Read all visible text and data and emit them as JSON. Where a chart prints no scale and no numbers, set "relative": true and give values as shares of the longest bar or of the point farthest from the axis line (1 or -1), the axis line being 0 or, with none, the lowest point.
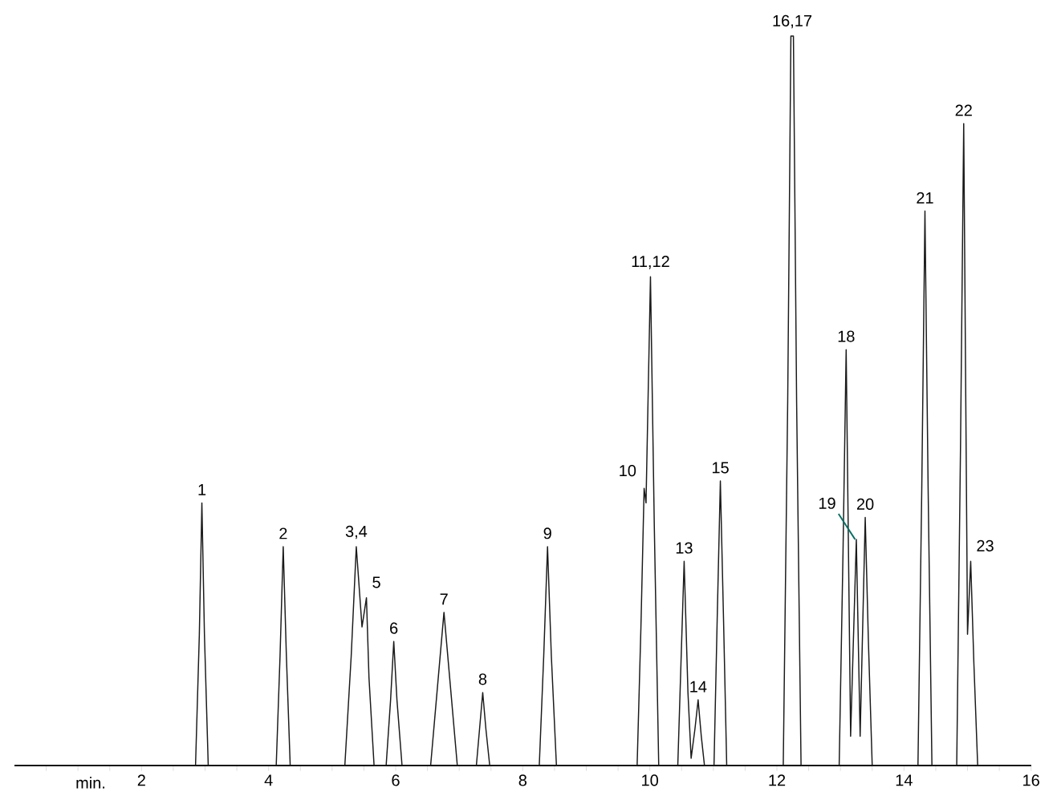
{
  "chart_data": {
    "type": "line",
    "relative": true,
    "xlabel": "min.",
    "x": [
      0,
      2.85,
      2.91,
      2.95,
      2.99,
      3.05,
      4.12,
      4.18,
      4.23,
      4.28,
      4.34,
      5.2,
      5.3,
      5.38,
      5.47,
      5.54,
      5.58,
      5.66,
      5.85,
      5.92,
      5.97,
      6.02,
      6.1,
      6.55,
      6.66,
      6.76,
      6.86,
      6.97,
      7.27,
      7.32,
      7.37,
      7.42,
      7.48,
      8.26,
      8.33,
      8.39,
      8.45,
      8.53,
      9.8,
      9.86,
      9.91,
      9.94,
      10.01,
      10.07,
      10.14,
      10.44,
      10.49,
      10.54,
      10.6,
      10.65,
      10.71,
      10.76,
      10.81,
      10.86,
      11.01,
      11.06,
      11.11,
      11.16,
      11.21,
      12.1,
      12.17,
      12.22,
      12.26,
      12.31,
      12.38,
      12.98,
      13.04,
      13.09,
      13.16,
      13.25,
      13.31,
      13.39,
      13.44,
      13.5,
      14.22,
      14.28,
      14.33,
      14.38,
      14.44,
      14.83,
      14.89,
      14.94,
      15.0,
      15.05,
      15.1,
      15.16,
      16
    ],
    "values": [
      0,
      0,
      0.18,
      0.36,
      0.18,
      0,
      0,
      0.15,
      0.3,
      0.15,
      0,
      0,
      0.15,
      0.3,
      0.19,
      0.23,
      0.12,
      0,
      0,
      0.09,
      0.17,
      0.09,
      0,
      0,
      0.11,
      0.21,
      0.11,
      0,
      0,
      0.05,
      0.1,
      0.05,
      0,
      0,
      0.15,
      0.3,
      0.15,
      0,
      0,
      0.19,
      0.38,
      0.36,
      0.67,
      0.33,
      0,
      0,
      0.14,
      0.28,
      0.1,
      0.01,
      0.05,
      0.09,
      0.04,
      0,
      0,
      0.2,
      0.39,
      0.2,
      0,
      0,
      0.5,
      1,
      1,
      0.5,
      0,
      0,
      0.29,
      0.57,
      0.04,
      0.31,
      0.04,
      0.34,
      0.17,
      0,
      0,
      0.38,
      0.76,
      0.38,
      0,
      0,
      0.44,
      0.88,
      0.18,
      0.28,
      0.14,
      0,
      0
    ],
    "color": "#1a1a1a",
    "line_style": "solid",
    "marker": "none",
    "xlim": [
      0,
      16
    ],
    "xticks": [
      {
        "value": 0.5,
        "label": null
      },
      {
        "value": 1,
        "label": null
      },
      {
        "value": 1.5,
        "label": null
      },
      2,
      {
        "value": 2.5,
        "label": null
      },
      {
        "value": 3,
        "label": null
      },
      {
        "value": 3.5,
        "label": null
      },
      4,
      {
        "value": 4.5,
        "label": null
      },
      {
        "value": 5,
        "label": null
      },
      {
        "value": 5.5,
        "label": null
      },
      6,
      {
        "value": 6.5,
        "label": null
      },
      {
        "value": 7,
        "label": null
      },
      {
        "value": 7.5,
        "label": null
      },
      8,
      {
        "value": 8.5,
        "label": null
      },
      {
        "value": 9,
        "label": null
      },
      {
        "value": 9.5,
        "label": null
      },
      10,
      {
        "value": 10.5,
        "label": null
      },
      {
        "value": 11,
        "label": null
      },
      {
        "value": 11.5,
        "label": null
      },
      12,
      {
        "value": 12.5,
        "label": null
      },
      {
        "value": 13,
        "label": null
      },
      {
        "value": 13.5,
        "label": null
      },
      14,
      {
        "value": 14.5,
        "label": null
      },
      {
        "value": 15,
        "label": null
      },
      {
        "value": 15.5,
        "label": null
      },
      16
    ],
    "annotations": [
      {
        "text": "1",
        "x": 2.95,
        "y": 0.36
      },
      {
        "text": "2",
        "x": 4.23,
        "y": 0.3
      },
      {
        "text": "3,4",
        "x": 5.38,
        "y": 0.3
      },
      {
        "text": "5",
        "x": 5.54,
        "y": 0.23
      },
      {
        "text": "6",
        "x": 5.97,
        "y": 0.17
      },
      {
        "text": "7",
        "x": 6.76,
        "y": 0.21
      },
      {
        "text": "8",
        "x": 7.37,
        "y": 0.1
      },
      {
        "text": "9",
        "x": 8.39,
        "y": 0.3
      },
      {
        "text": "10",
        "x": 9.91,
        "y": 0.38
      },
      {
        "text": "11,12",
        "x": 10.01,
        "y": 0.67
      },
      {
        "text": "13",
        "x": 10.54,
        "y": 0.28
      },
      {
        "text": "14",
        "x": 10.76,
        "y": 0.09
      },
      {
        "text": "15",
        "x": 11.11,
        "y": 0.39
      },
      {
        "text": "16,17",
        "x": 12.24,
        "y": 1
      },
      {
        "text": "18",
        "x": 13.09,
        "y": 0.57
      },
      {
        "text": "19",
        "x": 13.25,
        "y": 0.31
      },
      {
        "text": "20",
        "x": 13.39,
        "y": 0.34
      },
      {
        "text": "21",
        "x": 14.33,
        "y": 0.76
      },
      {
        "text": "22",
        "x": 14.94,
        "y": 0.88
      },
      {
        "text": "23",
        "x": 15.05,
        "y": 0.28
      }
    ]
  }
}
